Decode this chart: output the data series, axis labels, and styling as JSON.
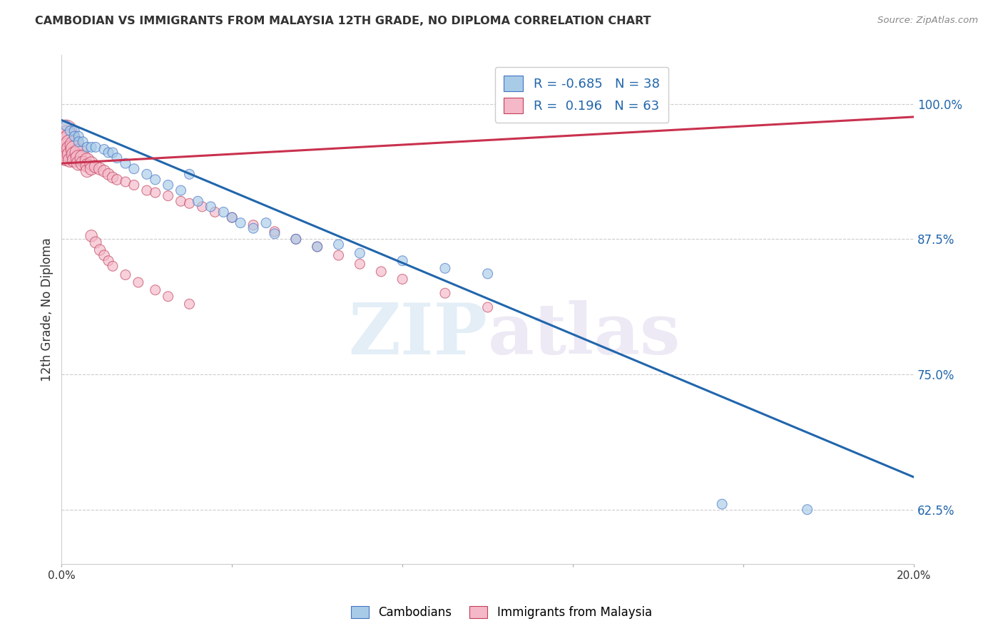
{
  "title": "CAMBODIAN VS IMMIGRANTS FROM MALAYSIA 12TH GRADE, NO DIPLOMA CORRELATION CHART",
  "source": "Source: ZipAtlas.com",
  "ylabel": "12th Grade, No Diploma",
  "yticks": [
    0.625,
    0.75,
    0.875,
    1.0
  ],
  "ytick_labels": [
    "62.5%",
    "75.0%",
    "87.5%",
    "100.0%"
  ],
  "xlim": [
    0.0,
    0.2
  ],
  "ylim": [
    0.575,
    1.045
  ],
  "watermark_zip": "ZIP",
  "watermark_atlas": "atlas",
  "cambodian_color": "#a8cce8",
  "cambodian_edge_color": "#4472c4",
  "malaysia_color": "#f4b8c8",
  "malaysia_edge_color": "#c0405a",
  "cambodian_line_color": "#2166ac",
  "malaysia_line_color": "#c9314e",
  "blue_line": {
    "x0": 0.0,
    "y0": 0.985,
    "x1": 0.2,
    "y1": 0.655
  },
  "pink_line": {
    "x0": 0.0,
    "y0": 0.945,
    "x1": 0.2,
    "y1": 0.988
  },
  "cambodian_x": [
    0.001,
    0.002,
    0.003,
    0.003,
    0.004,
    0.004,
    0.005,
    0.006,
    0.007,
    0.008,
    0.01,
    0.011,
    0.012,
    0.013,
    0.015,
    0.017,
    0.02,
    0.022,
    0.025,
    0.028,
    0.032,
    0.035,
    0.038,
    0.04,
    0.042,
    0.045,
    0.05,
    0.055,
    0.06,
    0.065,
    0.07,
    0.08,
    0.09,
    0.1,
    0.03,
    0.048,
    0.155,
    0.175
  ],
  "cambodian_y": [
    0.98,
    0.975,
    0.975,
    0.97,
    0.97,
    0.965,
    0.965,
    0.96,
    0.96,
    0.96,
    0.958,
    0.955,
    0.955,
    0.95,
    0.945,
    0.94,
    0.935,
    0.93,
    0.925,
    0.92,
    0.91,
    0.905,
    0.9,
    0.895,
    0.89,
    0.885,
    0.88,
    0.875,
    0.868,
    0.87,
    0.862,
    0.855,
    0.848,
    0.843,
    0.935,
    0.89,
    0.63,
    0.625
  ],
  "cambodian_sizes": [
    100,
    100,
    100,
    100,
    100,
    100,
    100,
    100,
    100,
    100,
    100,
    100,
    100,
    100,
    100,
    100,
    100,
    100,
    100,
    100,
    100,
    100,
    100,
    100,
    100,
    100,
    100,
    100,
    100,
    100,
    100,
    100,
    100,
    100,
    100,
    100,
    100,
    100
  ],
  "malaysia_x": [
    0.001,
    0.001,
    0.001,
    0.001,
    0.001,
    0.001,
    0.002,
    0.002,
    0.002,
    0.002,
    0.002,
    0.003,
    0.003,
    0.003,
    0.003,
    0.004,
    0.004,
    0.004,
    0.005,
    0.005,
    0.006,
    0.006,
    0.006,
    0.007,
    0.007,
    0.008,
    0.009,
    0.01,
    0.011,
    0.012,
    0.013,
    0.015,
    0.017,
    0.02,
    0.022,
    0.025,
    0.028,
    0.03,
    0.033,
    0.036,
    0.04,
    0.045,
    0.05,
    0.055,
    0.06,
    0.065,
    0.07,
    0.075,
    0.08,
    0.09,
    0.1,
    0.007,
    0.008,
    0.009,
    0.01,
    0.011,
    0.012,
    0.015,
    0.018,
    0.022,
    0.025,
    0.03
  ],
  "malaysia_y": [
    0.975,
    0.97,
    0.965,
    0.96,
    0.955,
    0.95,
    0.968,
    0.963,
    0.958,
    0.953,
    0.948,
    0.962,
    0.958,
    0.953,
    0.948,
    0.955,
    0.95,
    0.945,
    0.95,
    0.945,
    0.948,
    0.943,
    0.938,
    0.945,
    0.94,
    0.942,
    0.94,
    0.938,
    0.935,
    0.932,
    0.93,
    0.928,
    0.925,
    0.92,
    0.918,
    0.915,
    0.91,
    0.908,
    0.905,
    0.9,
    0.895,
    0.888,
    0.882,
    0.875,
    0.868,
    0.86,
    0.852,
    0.845,
    0.838,
    0.825,
    0.812,
    0.878,
    0.872,
    0.865,
    0.86,
    0.855,
    0.85,
    0.842,
    0.835,
    0.828,
    0.822,
    0.815
  ],
  "malaysia_sizes": [
    500,
    450,
    400,
    350,
    300,
    250,
    400,
    350,
    300,
    250,
    200,
    350,
    300,
    250,
    200,
    300,
    250,
    200,
    250,
    200,
    200,
    180,
    160,
    180,
    160,
    160,
    150,
    140,
    130,
    120,
    110,
    100,
    100,
    100,
    100,
    100,
    100,
    100,
    100,
    100,
    100,
    100,
    100,
    100,
    100,
    100,
    100,
    100,
    100,
    100,
    100,
    140,
    130,
    120,
    110,
    100,
    100,
    100,
    100,
    100,
    100,
    100
  ]
}
